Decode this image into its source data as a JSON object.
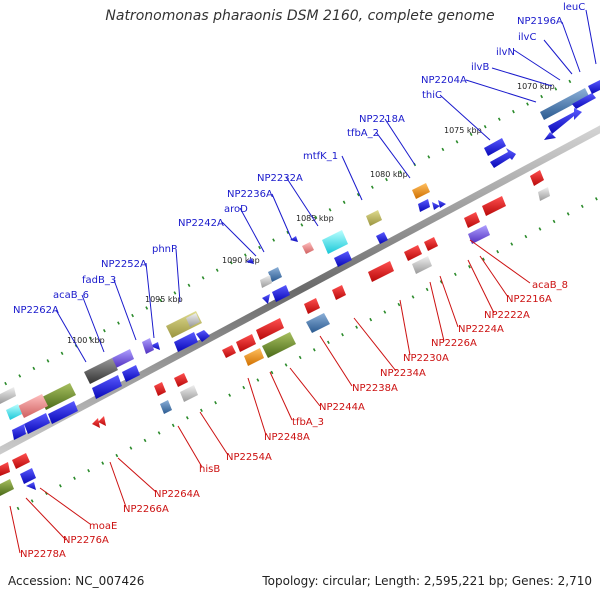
{
  "title": "Natronomonas pharaonis DSM 2160, complete genome",
  "footer": {
    "accession": "Accession: NC_007426",
    "summary": "Topology: circular; Length: 2,595,221 bp; Genes: 2,710"
  },
  "ticks": [
    "1070 kbp",
    "1075 kbp",
    "1080 kbp",
    "1085 kbp",
    "1090 kbp",
    "1095 kbp",
    "1100 kbp"
  ],
  "labels_forward": [
    "leuC",
    "NP2196A",
    "ilvC",
    "ilvN",
    "ilvB",
    "NP2204A",
    "thiC",
    "NP2218A",
    "tfbA_2",
    "mtfK_1",
    "NP2232A",
    "NP2236A",
    "aroD",
    "NP2242A",
    "phnP",
    "NP2252A",
    "fadB_3",
    "acaB_6",
    "NP2262A"
  ],
  "labels_reverse": [
    "acaB_8",
    "NP2216A",
    "NP2222A",
    "NP2224A",
    "NP2226A",
    "NP2230A",
    "NP2234A",
    "NP2238A",
    "NP2244A",
    "tfbA_3",
    "NP2248A",
    "NP2254A",
    "hisB",
    "NP2264A",
    "NP2266A",
    "moaE",
    "NP2276A",
    "NP2278A"
  ],
  "colors": {
    "forward_cds": "#1515e0",
    "reverse_cds": "#e01010",
    "forward_label": "#1a1acc",
    "reverse_label": "#cc1111",
    "backbone": "#888888",
    "tick_dots": "#2a8a2a"
  }
}
